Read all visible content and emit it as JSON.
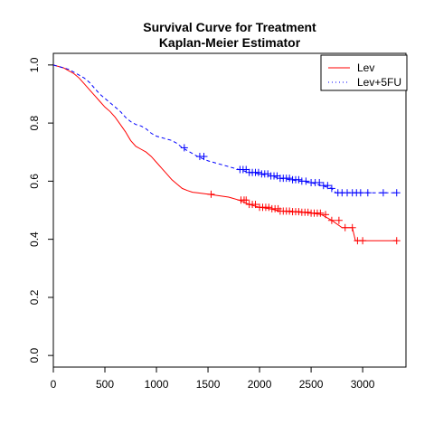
{
  "chart_data": {
    "type": "line",
    "title": "Survival Curve for Treatment",
    "subtitle": "Kaplan-Meier Estimator",
    "xlabel": "",
    "ylabel": "",
    "xlim": [
      0,
      3420
    ],
    "ylim": [
      -0.04,
      1.04
    ],
    "x_ticks": [
      0,
      500,
      1000,
      1500,
      2000,
      2500,
      3000
    ],
    "y_ticks": [
      0.0,
      0.2,
      0.4,
      0.6,
      0.8,
      1.0
    ],
    "y_tick_labels": [
      "0.0",
      "0.2",
      "0.4",
      "0.6",
      "0.8",
      "1.0"
    ],
    "legend_position": "top-right",
    "series": [
      {
        "name": "Lev",
        "color": "#ff0000",
        "line_style": "solid",
        "legend_style": "solid",
        "points": [
          [
            0,
            1.0
          ],
          [
            50,
            0.995
          ],
          [
            100,
            0.99
          ],
          [
            150,
            0.98
          ],
          [
            200,
            0.97
          ],
          [
            250,
            0.955
          ],
          [
            300,
            0.935
          ],
          [
            350,
            0.915
          ],
          [
            400,
            0.895
          ],
          [
            450,
            0.875
          ],
          [
            500,
            0.855
          ],
          [
            550,
            0.84
          ],
          [
            600,
            0.82
          ],
          [
            650,
            0.795
          ],
          [
            700,
            0.77
          ],
          [
            750,
            0.74
          ],
          [
            800,
            0.72
          ],
          [
            850,
            0.71
          ],
          [
            900,
            0.7
          ],
          [
            950,
            0.685
          ],
          [
            1000,
            0.665
          ],
          [
            1050,
            0.645
          ],
          [
            1100,
            0.625
          ],
          [
            1150,
            0.605
          ],
          [
            1200,
            0.59
          ],
          [
            1250,
            0.575
          ],
          [
            1300,
            0.568
          ],
          [
            1350,
            0.562
          ],
          [
            1400,
            0.56
          ],
          [
            1500,
            0.555
          ],
          [
            1600,
            0.55
          ],
          [
            1700,
            0.545
          ],
          [
            1800,
            0.535
          ],
          [
            1900,
            0.52
          ],
          [
            2000,
            0.51
          ],
          [
            2100,
            0.505
          ],
          [
            2200,
            0.497
          ],
          [
            2300,
            0.495
          ],
          [
            2400,
            0.493
          ],
          [
            2500,
            0.49
          ],
          [
            2600,
            0.485
          ],
          [
            2700,
            0.465
          ],
          [
            2800,
            0.44
          ],
          [
            2900,
            0.44
          ],
          [
            2930,
            0.395
          ],
          [
            3000,
            0.395
          ],
          [
            3330,
            0.395
          ]
        ],
        "censored": [
          1530,
          1820,
          1850,
          1870,
          1900,
          1930,
          1960,
          2000,
          2030,
          2060,
          2090,
          2120,
          2150,
          2180,
          2200,
          2230,
          2260,
          2290,
          2320,
          2350,
          2380,
          2410,
          2440,
          2470,
          2500,
          2530,
          2560,
          2590,
          2640,
          2700,
          2770,
          2830,
          2900,
          2950,
          3000,
          3330
        ]
      },
      {
        "name": "Lev+5FU",
        "color": "#0000ff",
        "line_style": "dashed",
        "legend_style": "dotted",
        "points": [
          [
            0,
            1.0
          ],
          [
            50,
            0.995
          ],
          [
            100,
            0.99
          ],
          [
            150,
            0.985
          ],
          [
            200,
            0.975
          ],
          [
            250,
            0.965
          ],
          [
            300,
            0.955
          ],
          [
            350,
            0.94
          ],
          [
            400,
            0.92
          ],
          [
            450,
            0.9
          ],
          [
            500,
            0.885
          ],
          [
            550,
            0.87
          ],
          [
            600,
            0.855
          ],
          [
            650,
            0.84
          ],
          [
            700,
            0.82
          ],
          [
            750,
            0.805
          ],
          [
            800,
            0.795
          ],
          [
            850,
            0.79
          ],
          [
            900,
            0.78
          ],
          [
            950,
            0.765
          ],
          [
            1000,
            0.755
          ],
          [
            1050,
            0.75
          ],
          [
            1100,
            0.745
          ],
          [
            1150,
            0.74
          ],
          [
            1200,
            0.73
          ],
          [
            1250,
            0.715
          ],
          [
            1300,
            0.705
          ],
          [
            1350,
            0.695
          ],
          [
            1400,
            0.685
          ],
          [
            1500,
            0.67
          ],
          [
            1600,
            0.66
          ],
          [
            1700,
            0.65
          ],
          [
            1800,
            0.64
          ],
          [
            1900,
            0.63
          ],
          [
            2000,
            0.625
          ],
          [
            2100,
            0.618
          ],
          [
            2200,
            0.61
          ],
          [
            2300,
            0.605
          ],
          [
            2400,
            0.6
          ],
          [
            2500,
            0.595
          ],
          [
            2600,
            0.585
          ],
          [
            2700,
            0.575
          ],
          [
            2740,
            0.56
          ],
          [
            3330,
            0.56
          ]
        ],
        "censored": [
          1270,
          1420,
          1460,
          1810,
          1840,
          1870,
          1900,
          1930,
          1960,
          1990,
          2020,
          2050,
          2080,
          2110,
          2140,
          2170,
          2200,
          2230,
          2260,
          2290,
          2320,
          2350,
          2380,
          2410,
          2450,
          2500,
          2540,
          2580,
          2620,
          2660,
          2700,
          2760,
          2800,
          2850,
          2900,
          2940,
          2980,
          3050,
          3200,
          3330
        ]
      }
    ]
  }
}
